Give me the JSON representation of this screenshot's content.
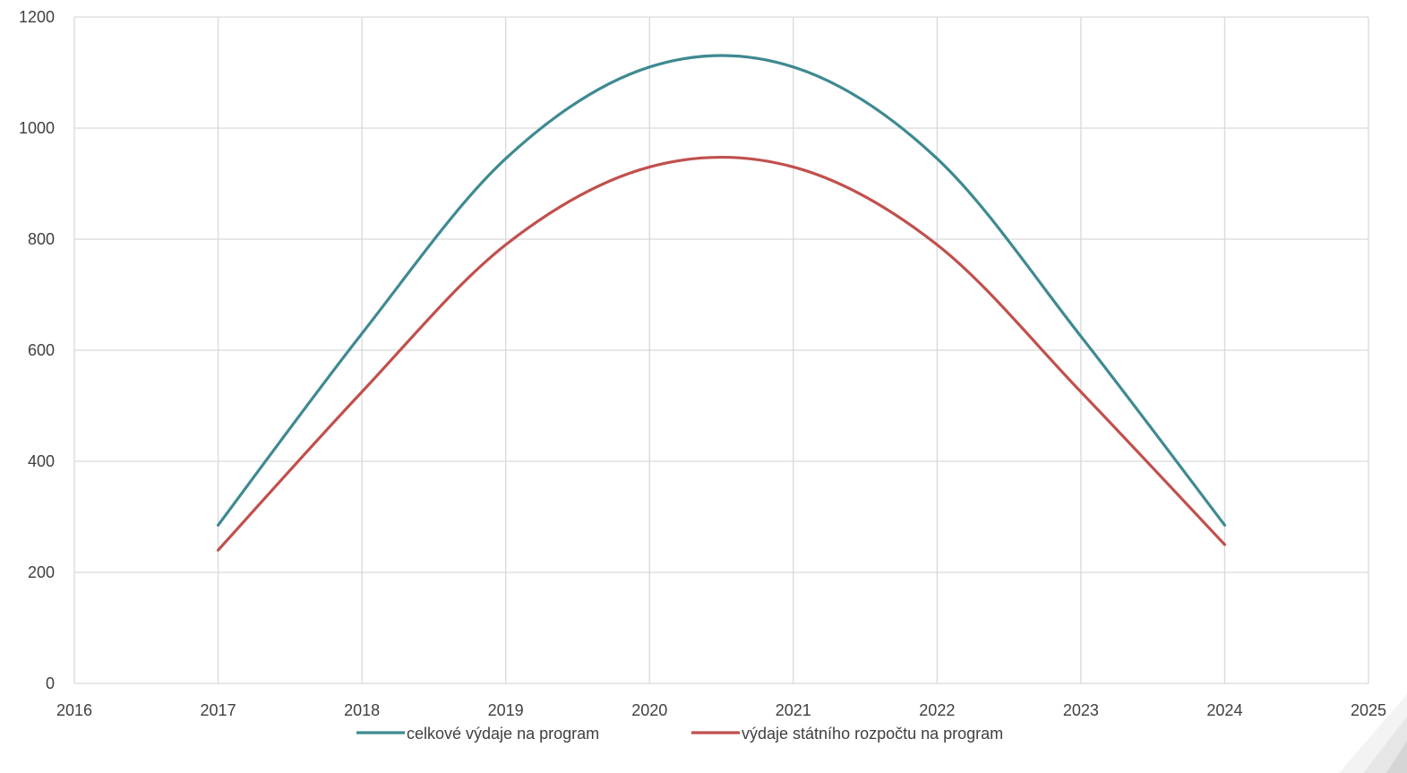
{
  "chart_data": {
    "type": "scatter",
    "title": "",
    "xlabel": "",
    "ylabel": "",
    "xlim": [
      2016,
      2025
    ],
    "ylim": [
      0,
      1200
    ],
    "x_ticks": [
      "2016",
      "2017",
      "2018",
      "2019",
      "2020",
      "2021",
      "2022",
      "2023",
      "2024",
      "2025"
    ],
    "y_ticks": [
      "0",
      "200",
      "400",
      "600",
      "800",
      "1000",
      "1200"
    ],
    "grid": true,
    "smooth": true,
    "legend_position": "bottom",
    "series": [
      {
        "name": "celkové výdaje na program",
        "color": "#3E8A91",
        "x": [
          2017,
          2018,
          2019,
          2020,
          2021,
          2022,
          2023,
          2024
        ],
        "y": [
          285,
          630,
          945,
          1110,
          1110,
          945,
          625,
          285
        ]
      },
      {
        "name": "výdaje státního rozpočtu na program",
        "color": "#C0504D",
        "x": [
          2017,
          2018,
          2019,
          2020,
          2021,
          2022,
          2023,
          2024
        ],
        "y": [
          240,
          525,
          790,
          930,
          930,
          790,
          525,
          250
        ]
      }
    ]
  }
}
